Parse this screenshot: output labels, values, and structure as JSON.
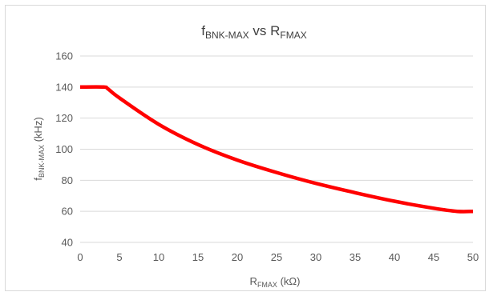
{
  "chart_data": {
    "type": "line",
    "title": {
      "main": "f",
      "main_sub": "BNK-MAX",
      "vs": " vs R",
      "vs_sub": "FMAX"
    },
    "xlabel": {
      "main": "R",
      "sub": "FMAX",
      "unit": " (kΩ)"
    },
    "ylabel": {
      "main": "f",
      "sub": "BNK-MAX",
      "unit": " (kHz)"
    },
    "xlim": [
      0,
      50
    ],
    "ylim": [
      40,
      160
    ],
    "xticks": [
      "0",
      "5",
      "10",
      "15",
      "20",
      "25",
      "30",
      "35",
      "40",
      "45",
      "50"
    ],
    "yticks": [
      "40",
      "60",
      "80",
      "100",
      "120",
      "140",
      "160"
    ],
    "grid": true,
    "color": "#ff0000",
    "series": [
      {
        "x": [
          0,
          3,
          3.5,
          5,
          10,
          15,
          20,
          25,
          30,
          35,
          40,
          45,
          48,
          50
        ],
        "y": [
          140,
          140,
          139,
          133,
          116,
          103,
          93,
          85,
          78,
          72,
          66.5,
          62,
          60,
          60
        ]
      }
    ]
  }
}
